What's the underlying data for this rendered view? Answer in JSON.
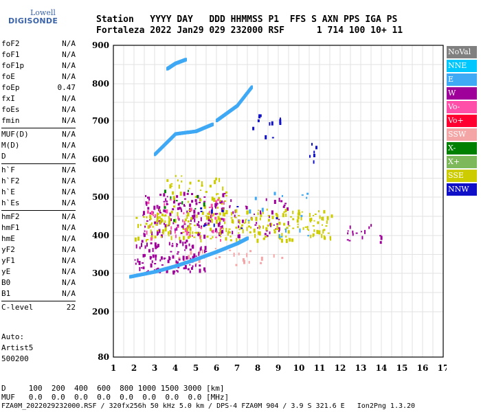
{
  "logo": {
    "line1": "Lowell",
    "line2": "DIGISONDE"
  },
  "header": {
    "line1": "Station   YYYY DAY   DDD HHMMSS P1  FFS S AXN PPS IGA PS",
    "line2": "Fortaleza 2022 Jan29 029 232000 RSF      1 714 100 10+ 11"
  },
  "params": [
    {
      "group": [
        {
          "k": "foF2",
          "v": "N/A"
        },
        {
          "k": "foF1",
          "v": "N/A"
        },
        {
          "k": "foF1p",
          "v": "N/A"
        },
        {
          "k": "foE",
          "v": "N/A"
        },
        {
          "k": "foEp",
          "v": "0.47"
        },
        {
          "k": "fxI",
          "v": "N/A"
        },
        {
          "k": "foEs",
          "v": "N/A"
        },
        {
          "k": "fmin",
          "v": "N/A"
        }
      ]
    },
    {
      "group": [
        {
          "k": "MUF(D)",
          "v": "N/A"
        },
        {
          "k": "M(D)",
          "v": "N/A"
        },
        {
          "k": "D",
          "v": "N/A"
        }
      ]
    },
    {
      "group": [
        {
          "k": "h`F",
          "v": "N/A"
        },
        {
          "k": "h`F2",
          "v": "N/A"
        },
        {
          "k": "h`E",
          "v": "N/A"
        },
        {
          "k": "h`Es",
          "v": "N/A"
        }
      ]
    },
    {
      "group": [
        {
          "k": "hmF2",
          "v": "N/A"
        },
        {
          "k": "hmF1",
          "v": "N/A"
        },
        {
          "k": "hmE",
          "v": "N/A"
        },
        {
          "k": "yF2",
          "v": "N/A"
        },
        {
          "k": "yF1",
          "v": "N/A"
        },
        {
          "k": "yE",
          "v": "N/A"
        },
        {
          "k": "B0",
          "v": "N/A"
        },
        {
          "k": "B1",
          "v": "N/A"
        }
      ]
    },
    {
      "group": [
        {
          "k": "C-level",
          "v": "22"
        }
      ]
    }
  ],
  "status": {
    "auto": "Auto:",
    "artist": "Artist5",
    "code": "500200"
  },
  "footer": {
    "d_row": "D     100  200  400  600  800 1000 1500 3000 [km]",
    "muf_row": "MUF   0.0  0.0  0.0  0.0  0.0  0.0  0.0  0.0 [MHz]",
    "file_row": "FZA0M_2022029232000.RSF / 320fx256h 50 kHz 5.0 km / DPS-4 FZA0M 904 / 3.9 S 321.6 E   Ion2Png 1.3.20"
  },
  "legend": [
    {
      "label": "NoVal",
      "color": "#808080"
    },
    {
      "label": "NNE",
      "color": "#00c8ff"
    },
    {
      "label": "E",
      "color": "#3fa9f5"
    },
    {
      "label": "W",
      "color": "#a0009a"
    },
    {
      "label": "Vo-",
      "color": "#ff4fa8"
    },
    {
      "label": "Vo+",
      "color": "#ff0030"
    },
    {
      "label": "SSW",
      "color": "#f4a5a5"
    },
    {
      "label": "X-",
      "color": "#008000"
    },
    {
      "label": "X+",
      "color": "#7db85a"
    },
    {
      "label": "SSE",
      "color": "#cccc00"
    },
    {
      "label": "NNW",
      "color": "#1010c8"
    }
  ],
  "chart_data": {
    "type": "scatter",
    "xlabel": "",
    "ylabel": "",
    "xlim": [
      1,
      17
    ],
    "ylim": [
      80,
      900
    ],
    "x_ticks": [
      1,
      2,
      3,
      4,
      5,
      6,
      7,
      8,
      9,
      10,
      11,
      12,
      13,
      14,
      15,
      16,
      17
    ],
    "y_ticks": [
      80,
      200,
      300,
      400,
      500,
      600,
      700,
      800,
      900
    ],
    "grid": true,
    "traces": [
      {
        "name": "E",
        "color": "#3fa9f5",
        "points": [
          [
            1.8,
            290
          ],
          [
            3.0,
            303
          ],
          [
            4.0,
            318
          ],
          [
            5.0,
            336
          ],
          [
            6.0,
            356
          ],
          [
            7.0,
            378
          ],
          [
            7.5,
            392
          ]
        ]
      },
      {
        "name": "E",
        "color": "#3fa9f5",
        "points": [
          [
            3.0,
            612
          ],
          [
            4.0,
            665
          ],
          [
            5.0,
            672
          ],
          [
            5.8,
            690
          ]
        ]
      },
      {
        "name": "E",
        "color": "#3fa9f5",
        "points": [
          [
            6.0,
            700
          ],
          [
            7.0,
            740
          ],
          [
            7.7,
            790
          ]
        ]
      },
      {
        "name": "E",
        "color": "#3fa9f5",
        "points": [
          [
            3.6,
            838
          ],
          [
            4.0,
            852
          ],
          [
            4.5,
            862
          ]
        ]
      }
    ],
    "clusters": [
      {
        "name": "SSW",
        "color": "#f4a5a5",
        "x": [
          3.5,
          9.3
        ],
        "y": [
          320,
          370
        ],
        "density": 28
      },
      {
        "name": "W",
        "color": "#a0009a",
        "x": [
          2.0,
          5.5
        ],
        "y": [
          305,
          390
        ],
        "density": 110
      },
      {
        "name": "W",
        "color": "#a0009a",
        "x": [
          2.4,
          6.4
        ],
        "y": [
          400,
          515
        ],
        "density": 150
      },
      {
        "name": "W",
        "color": "#a0009a",
        "x": [
          6.5,
          9.5
        ],
        "y": [
          400,
          500
        ],
        "density": 45
      },
      {
        "name": "SSE",
        "color": "#cccc00",
        "x": [
          2.0,
          11.6
        ],
        "y": [
          390,
          470
        ],
        "density": 260
      },
      {
        "name": "SSE",
        "color": "#cccc00",
        "x": [
          3.5,
          6.5
        ],
        "y": [
          470,
          560
        ],
        "density": 40
      },
      {
        "name": "Vo-",
        "color": "#ff4fa8",
        "x": [
          2.5,
          6.5
        ],
        "y": [
          380,
          500
        ],
        "density": 40
      },
      {
        "name": "E",
        "color": "#3fa9f5",
        "x": [
          7.5,
          10.5
        ],
        "y": [
          380,
          520
        ],
        "density": 15
      },
      {
        "name": "NNW",
        "color": "#1010c8",
        "x": [
          7.6,
          9.3
        ],
        "y": [
          655,
          720
        ],
        "density": 12
      },
      {
        "name": "NNW",
        "color": "#1010c8",
        "x": [
          10.4,
          10.9
        ],
        "y": [
          580,
          650
        ],
        "density": 6
      },
      {
        "name": "W",
        "color": "#a0009a",
        "x": [
          12.3,
          14.0
        ],
        "y": [
          385,
          440
        ],
        "density": 16
      },
      {
        "name": "X-",
        "color": "#008000",
        "x": [
          3.0,
          5.5
        ],
        "y": [
          395,
          520
        ],
        "density": 10
      },
      {
        "name": "NNW",
        "color": "#1010c8",
        "x": [
          4.5,
          9.0
        ],
        "y": [
          420,
          480
        ],
        "density": 10
      }
    ]
  }
}
